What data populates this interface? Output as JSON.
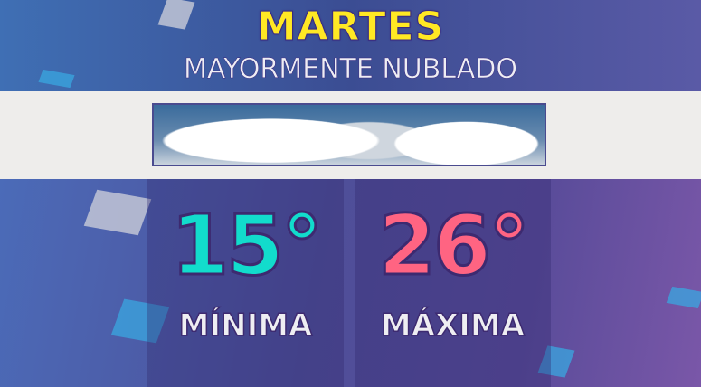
{
  "header": {
    "day": "MARTES",
    "condition": "MAYORMENTE NUBLADO"
  },
  "forecast": {
    "min": {
      "value": "15°",
      "label": "MÍNIMA",
      "color": "#12dccc"
    },
    "max": {
      "value": "26°",
      "label": "MÁXIMA",
      "color": "#ff6482"
    }
  },
  "icon": "cloudy-sky-image"
}
